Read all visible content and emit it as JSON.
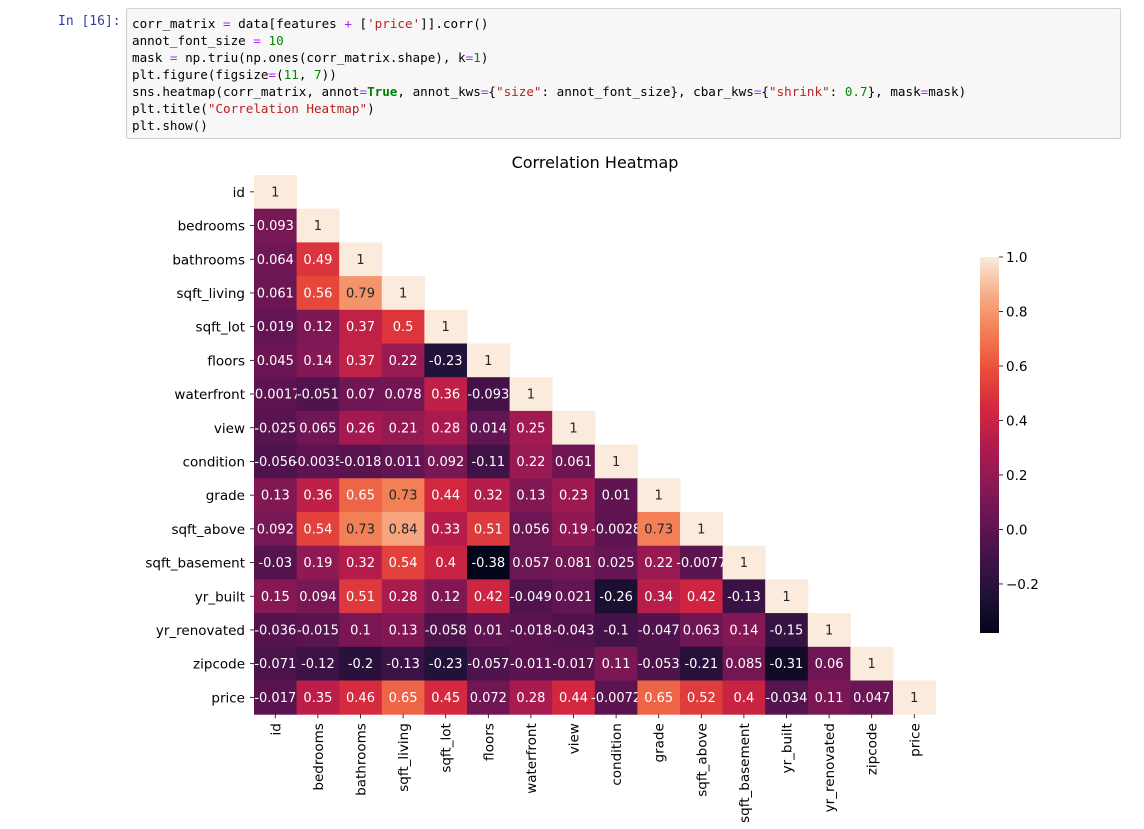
{
  "cell": {
    "prompt": "In [16]:",
    "code": [
      [
        {
          "t": "corr_matrix "
        },
        {
          "t": "=",
          "c": "tok-eq"
        },
        {
          "t": " data[features "
        },
        {
          "t": "+",
          "c": "tok-eq"
        },
        {
          "t": " ["
        },
        {
          "t": "'price'",
          "c": "tok-str"
        },
        {
          "t": "]].corr()"
        }
      ],
      [
        {
          "t": "annot_font_size "
        },
        {
          "t": "=",
          "c": "tok-eq"
        },
        {
          "t": " "
        },
        {
          "t": "10",
          "c": "tok-num"
        }
      ],
      [
        {
          "t": "mask "
        },
        {
          "t": "=",
          "c": "tok-eq"
        },
        {
          "t": " np.triu(np.ones(corr_matrix.shape), k"
        },
        {
          "t": "=",
          "c": "tok-eq"
        },
        {
          "t": "1",
          "c": "tok-num"
        },
        {
          "t": ")"
        }
      ],
      [
        {
          "t": "plt.figure(figsize"
        },
        {
          "t": "=",
          "c": "tok-eq"
        },
        {
          "t": "("
        },
        {
          "t": "11",
          "c": "tok-num"
        },
        {
          "t": ", "
        },
        {
          "t": "7",
          "c": "tok-num"
        },
        {
          "t": "))"
        }
      ],
      [
        {
          "t": "sns.heatmap(corr_matrix, annot"
        },
        {
          "t": "=",
          "c": "tok-eq"
        },
        {
          "t": "True",
          "c": "tok-kw"
        },
        {
          "t": ", annot_kws"
        },
        {
          "t": "=",
          "c": "tok-eq"
        },
        {
          "t": "{"
        },
        {
          "t": "\"size\"",
          "c": "tok-str"
        },
        {
          "t": ": annot_font_size}, cbar_kws"
        },
        {
          "t": "=",
          "c": "tok-eq"
        },
        {
          "t": "{"
        },
        {
          "t": "\"shrink\"",
          "c": "tok-str"
        },
        {
          "t": ": "
        },
        {
          "t": "0.7",
          "c": "tok-num"
        },
        {
          "t": "}, mask"
        },
        {
          "t": "=",
          "c": "tok-eq"
        },
        {
          "t": "mask)"
        }
      ],
      [
        {
          "t": "plt.title("
        },
        {
          "t": "\"Correlation Heatmap\"",
          "c": "tok-str"
        },
        {
          "t": ")"
        }
      ],
      [
        {
          "t": "plt.show()"
        }
      ]
    ]
  },
  "chart_data": {
    "type": "heatmap",
    "title": "Correlation Heatmap",
    "labels": [
      "id",
      "bedrooms",
      "bathrooms",
      "sqft_living",
      "sqft_lot",
      "floors",
      "waterfront",
      "view",
      "condition",
      "grade",
      "sqft_above",
      "sqft_basement",
      "yr_built",
      "yr_renovated",
      "zipcode",
      "price"
    ],
    "mask": "upper-triangle",
    "rows": [
      [
        1
      ],
      [
        0.093,
        1
      ],
      [
        0.064,
        0.49,
        1
      ],
      [
        0.061,
        0.56,
        0.79,
        1
      ],
      [
        0.019,
        0.12,
        0.37,
        0.5,
        1
      ],
      [
        0.045,
        0.14,
        0.37,
        0.22,
        -0.23,
        1
      ],
      [
        -0.0017,
        -0.051,
        0.07,
        0.078,
        0.36,
        -0.093,
        1
      ],
      [
        -0.025,
        0.065,
        0.26,
        0.21,
        0.28,
        0.014,
        0.25,
        1
      ],
      [
        -0.056,
        -0.0035,
        -0.018,
        0.011,
        0.092,
        -0.11,
        0.22,
        0.061,
        1
      ],
      [
        0.13,
        0.36,
        0.65,
        0.73,
        0.44,
        0.32,
        0.13,
        0.23,
        0.01,
        1
      ],
      [
        0.092,
        0.54,
        0.73,
        0.84,
        0.33,
        0.51,
        0.056,
        0.19,
        -0.0028,
        0.73,
        1
      ],
      [
        -0.03,
        0.19,
        0.32,
        0.54,
        0.4,
        -0.38,
        0.057,
        0.081,
        0.025,
        0.22,
        -0.0077,
        1
      ],
      [
        0.15,
        0.094,
        0.51,
        0.28,
        0.12,
        0.42,
        -0.049,
        0.021,
        -0.26,
        0.34,
        0.42,
        -0.13,
        1
      ],
      [
        -0.036,
        -0.015,
        0.1,
        0.13,
        -0.058,
        0.01,
        -0.018,
        -0.043,
        -0.1,
        -0.047,
        0.063,
        0.14,
        -0.15,
        1
      ],
      [
        -0.071,
        -0.12,
        -0.2,
        -0.13,
        -0.23,
        -0.057,
        -0.011,
        -0.017,
        0.11,
        -0.053,
        -0.21,
        0.085,
        -0.31,
        0.06,
        1
      ],
      [
        -0.017,
        0.35,
        0.46,
        0.65,
        0.45,
        0.072,
        0.28,
        0.44,
        -0.0072,
        0.65,
        0.52,
        0.4,
        -0.034,
        0.11,
        0.047,
        1
      ]
    ],
    "colorbar": {
      "range": [
        -0.38,
        1.0
      ],
      "ticks": [
        1.0,
        0.8,
        0.6,
        0.4,
        0.2,
        0.0,
        -0.2
      ],
      "tick_labels": [
        "1.0",
        "0.8",
        "0.6",
        "0.4",
        "0.2",
        "0.0",
        "−0.2"
      ]
    },
    "colormap": "rocket"
  }
}
